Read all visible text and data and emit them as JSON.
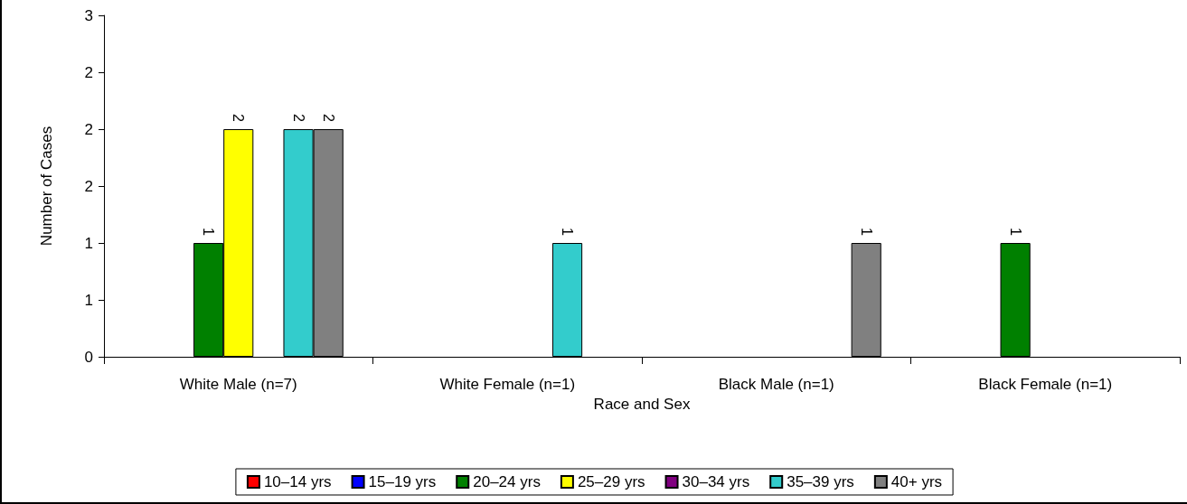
{
  "chart_data": {
    "type": "bar",
    "xlabel": "Race and Sex",
    "ylabel": "Number of Cases",
    "categories": [
      "White Male (n=7)",
      "White Female (n=1)",
      "Black Male (n=1)",
      "Black Female (n=1)"
    ],
    "series": [
      {
        "name": "10–14 yrs",
        "color": "#ff0000",
        "values": [
          null,
          null,
          null,
          null
        ]
      },
      {
        "name": "15–19 yrs",
        "color": "#0000ff",
        "values": [
          null,
          null,
          null,
          null
        ]
      },
      {
        "name": "20–24 yrs",
        "color": "#008000",
        "values": [
          1,
          null,
          null,
          1
        ]
      },
      {
        "name": "25–29 yrs",
        "color": "#ffff00",
        "values": [
          2,
          null,
          null,
          null
        ]
      },
      {
        "name": "30–34 yrs",
        "color": "#800080",
        "values": [
          null,
          null,
          null,
          null
        ]
      },
      {
        "name": "35–39 yrs",
        "color": "#33cccc",
        "values": [
          2,
          1,
          null,
          null
        ]
      },
      {
        "name": "40+ yrs",
        "color": "#808080",
        "values": [
          2,
          null,
          1,
          null
        ]
      }
    ],
    "ylim": [
      0,
      3
    ],
    "yticks": [
      0,
      {
        "value": 0.5,
        "label": "1"
      },
      {
        "value": 1,
        "label": "1"
      },
      {
        "value": 1.5,
        "label": "2"
      },
      {
        "value": 2,
        "label": "2"
      },
      {
        "value": 2.5,
        "label": "2"
      },
      3
    ],
    "data_labels": true,
    "grid": false,
    "legend": "bottom"
  }
}
